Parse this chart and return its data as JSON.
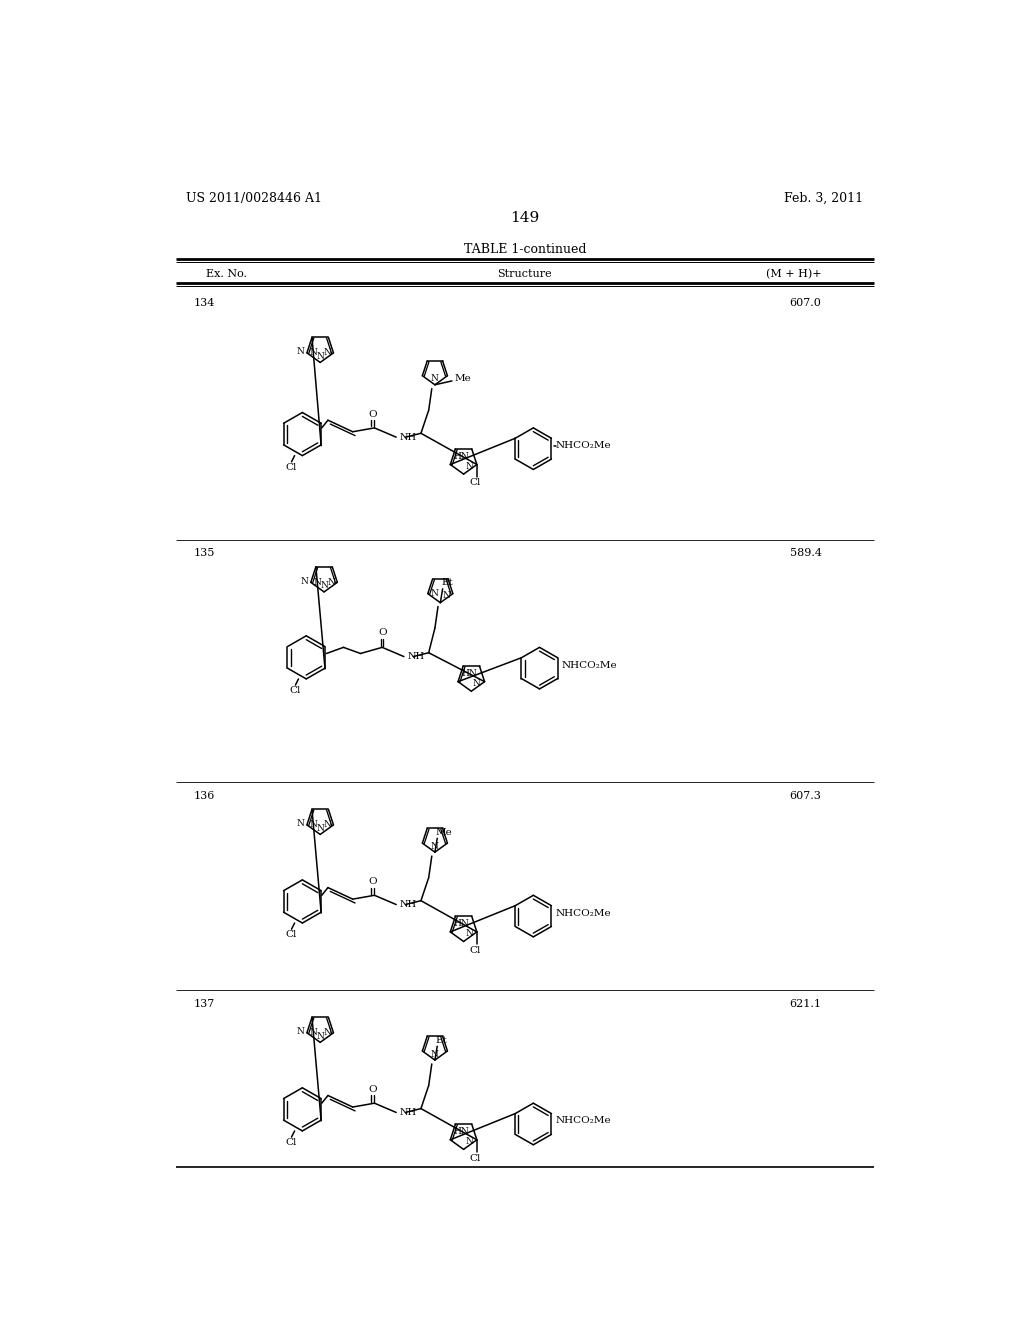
{
  "page_header_left": "US 2011/0028446 A1",
  "page_header_right": "Feb. 3, 2011",
  "page_number": "149",
  "table_title": "TABLE 1-continued",
  "col_headers": [
    "Ex. No.",
    "Structure",
    "(M + H)+"
  ],
  "rows": [
    {
      "ex_no": "134",
      "mh": "607.0"
    },
    {
      "ex_no": "135",
      "mh": "589.4"
    },
    {
      "ex_no": "136",
      "mh": "607.3"
    },
    {
      "ex_no": "137",
      "mh": "621.1"
    }
  ],
  "background_color": "#ffffff",
  "text_color": "#000000",
  "lw": 1.1
}
